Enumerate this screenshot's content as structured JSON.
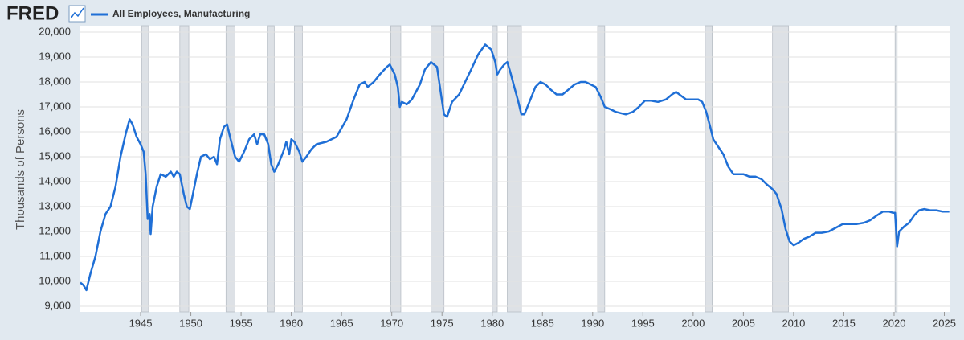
{
  "header": {
    "logo": "FRED"
  },
  "chart_data": {
    "type": "line",
    "ylabel": "Thousands of Persons",
    "xlim": [
      1939,
      2025.6
    ],
    "ylim": [
      9000,
      20000
    ],
    "xticks": [
      1945,
      1950,
      1955,
      1960,
      1965,
      1970,
      1975,
      1980,
      1985,
      1990,
      1995,
      2000,
      2005,
      2010,
      2015,
      2020,
      2025
    ],
    "yticks": [
      {
        "value": 9000,
        "label": "9,000"
      },
      {
        "value": 10000,
        "label": "10,000"
      },
      {
        "value": 11000,
        "label": "11,000"
      },
      {
        "value": 12000,
        "label": "12,000"
      },
      {
        "value": 13000,
        "label": "13,000"
      },
      {
        "value": 14000,
        "label": "14,000"
      },
      {
        "value": 15000,
        "label": "15,000"
      },
      {
        "value": 16000,
        "label": "16,000"
      },
      {
        "value": 17000,
        "label": "17,000"
      },
      {
        "value": 18000,
        "label": "18,000"
      },
      {
        "value": 19000,
        "label": "19,000"
      },
      {
        "value": 20000,
        "label": "20,000"
      }
    ],
    "grid": true,
    "recessions": [
      [
        1945.1,
        1945.8
      ],
      [
        1948.9,
        1949.8
      ],
      [
        1953.5,
        1954.4
      ],
      [
        1957.6,
        1958.3
      ],
      [
        1960.3,
        1961.1
      ],
      [
        1969.9,
        1970.9
      ],
      [
        1973.9,
        1975.2
      ],
      [
        1980.0,
        1980.5
      ],
      [
        1981.5,
        1982.9
      ],
      [
        1990.5,
        1991.2
      ],
      [
        2001.2,
        2001.9
      ],
      [
        2007.9,
        2009.5
      ],
      [
        2020.1,
        2020.3
      ]
    ],
    "recession_color": "#dde1e6",
    "x": [
      1939.0,
      1939.3,
      1939.6,
      1940.0,
      1940.5,
      1941.0,
      1941.5,
      1942.0,
      1942.5,
      1943.0,
      1943.5,
      1943.9,
      1944.2,
      1944.6,
      1945.0,
      1945.3,
      1945.5,
      1945.7,
      1945.9,
      1946.0,
      1946.2,
      1946.6,
      1947.0,
      1947.5,
      1948.0,
      1948.3,
      1948.6,
      1948.9,
      1949.3,
      1949.6,
      1949.9,
      1950.2,
      1950.6,
      1951.0,
      1951.5,
      1951.9,
      1952.3,
      1952.6,
      1952.9,
      1953.3,
      1953.6,
      1953.9,
      1954.4,
      1954.8,
      1955.3,
      1955.8,
      1956.3,
      1956.6,
      1956.9,
      1957.3,
      1957.7,
      1958.0,
      1958.3,
      1958.7,
      1959.2,
      1959.5,
      1959.8,
      1960.0,
      1960.3,
      1960.8,
      1961.1,
      1961.5,
      1962.0,
      1962.5,
      1963.5,
      1964.5,
      1965.5,
      1966.2,
      1966.8,
      1967.3,
      1967.6,
      1968.2,
      1968.8,
      1969.5,
      1969.8,
      1970.3,
      1970.6,
      1970.8,
      1971.0,
      1971.5,
      1972.0,
      1972.8,
      1973.3,
      1973.9,
      1974.5,
      1974.9,
      1975.2,
      1975.5,
      1976.0,
      1976.7,
      1977.3,
      1977.9,
      1978.6,
      1979.3,
      1979.6,
      1979.9,
      1980.3,
      1980.5,
      1980.8,
      1981.2,
      1981.5,
      1981.8,
      1982.2,
      1982.6,
      1982.9,
      1983.2,
      1983.8,
      1984.3,
      1984.8,
      1985.3,
      1985.8,
      1986.4,
      1987.0,
      1987.6,
      1988.2,
      1988.8,
      1989.3,
      1989.8,
      1990.3,
      1990.8,
      1991.2,
      1991.8,
      1992.3,
      1992.8,
      1993.3,
      1994.0,
      1994.6,
      1995.2,
      1995.8,
      1996.5,
      1997.3,
      1997.9,
      1998.3,
      1998.8,
      1999.3,
      1999.8,
      2000.5,
      2000.9,
      2001.3,
      2001.7,
      2002.0,
      2002.5,
      2003.0,
      2003.5,
      2004.0,
      2004.5,
      2005.0,
      2005.6,
      2006.2,
      2006.8,
      2007.3,
      2007.9,
      2008.3,
      2008.8,
      2009.2,
      2009.6,
      2010.0,
      2010.5,
      2011.0,
      2011.6,
      2012.2,
      2012.8,
      2013.5,
      2014.2,
      2014.9,
      2015.5,
      2016.3,
      2017.0,
      2017.6,
      2018.3,
      2018.9,
      2019.5,
      2019.9,
      2020.1,
      2020.3,
      2020.5,
      2021.0,
      2021.5,
      2022.0,
      2022.5,
      2023.0,
      2023.6,
      2024.2,
      2024.8,
      2025.5
    ],
    "series": [
      {
        "name": "All Employees, Manufacturing",
        "color": "#1f6fd6",
        "values": [
          9950,
          9850,
          9650,
          10300,
          11000,
          12000,
          12700,
          13000,
          13800,
          15000,
          15900,
          16500,
          16300,
          15800,
          15500,
          15200,
          14300,
          12500,
          12700,
          11900,
          13000,
          13800,
          14300,
          14200,
          14400,
          14200,
          14400,
          14300,
          13500,
          13000,
          12900,
          13500,
          14300,
          15000,
          15100,
          14900,
          15000,
          14700,
          15700,
          16200,
          16300,
          15800,
          15000,
          14800,
          15200,
          15700,
          15900,
          15500,
          15900,
          15900,
          15500,
          14700,
          14400,
          14700,
          15200,
          15600,
          15100,
          15700,
          15600,
          15200,
          14800,
          15000,
          15300,
          15500,
          15600,
          15800,
          16500,
          17300,
          17900,
          18000,
          17800,
          18000,
          18300,
          18600,
          18700,
          18300,
          17800,
          17000,
          17200,
          17100,
          17300,
          17900,
          18500,
          18800,
          18600,
          17500,
          16700,
          16600,
          17200,
          17500,
          18000,
          18500,
          19100,
          19500,
          19400,
          19300,
          18800,
          18300,
          18500,
          18700,
          18800,
          18400,
          17800,
          17200,
          16700,
          16700,
          17300,
          17800,
          18000,
          17900,
          17700,
          17500,
          17500,
          17700,
          17900,
          18000,
          18000,
          17900,
          17800,
          17400,
          17000,
          16900,
          16800,
          16750,
          16700,
          16800,
          17000,
          17250,
          17250,
          17200,
          17300,
          17500,
          17600,
          17450,
          17300,
          17300,
          17300,
          17200,
          16800,
          16200,
          15700,
          15400,
          15100,
          14600,
          14300,
          14300,
          14300,
          14200,
          14200,
          14100,
          13900,
          13700,
          13500,
          12900,
          12100,
          11600,
          11450,
          11550,
          11700,
          11800,
          11950,
          11950,
          12000,
          12150,
          12300,
          12300,
          12300,
          12350,
          12450,
          12650,
          12800,
          12800,
          12750,
          12750,
          11400,
          12000,
          12200,
          12350,
          12650,
          12850,
          12900,
          12850,
          12850,
          12800,
          12800
        ]
      }
    ]
  }
}
